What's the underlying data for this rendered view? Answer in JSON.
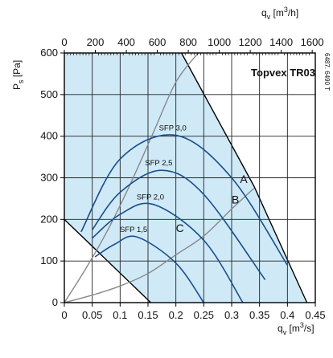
{
  "chart_data": {
    "type": "line",
    "title": "Topvex TR03",
    "side_code": "6487. 6490 T",
    "xlabel": {
      "base": "q",
      "sub": "v",
      "unit": " [m",
      "sup": "3",
      "unit_end": "/s]"
    },
    "x2label": {
      "base": "q",
      "sub": "v",
      "unit": " [m",
      "sup": "3",
      "unit_end": "/h]"
    },
    "ylabel": {
      "base": "P",
      "sub": "s",
      "unit": " [Pa]"
    },
    "xlim": [
      0,
      0.45
    ],
    "x2lim": [
      0,
      1620
    ],
    "ylim": [
      0,
      600
    ],
    "x_ticks": [
      0,
      0.05,
      0.1,
      0.15,
      0.2,
      0.25,
      0.3,
      0.35,
      0.4,
      0.45
    ],
    "x_tick_labels": [
      "0",
      "0.05",
      "0.1",
      "0.15",
      "0.2",
      "0.25",
      "0.3",
      "0.35",
      "0.4",
      "0.45"
    ],
    "x2_ticks": [
      0,
      200,
      400,
      600,
      800,
      1000,
      1200,
      1400,
      1600
    ],
    "x2_tick_labels": [
      "0",
      "200",
      "400",
      "600",
      "800",
      "1000",
      "1200",
      "1400",
      "1600"
    ],
    "y_ticks": [
      0,
      100,
      200,
      300,
      400,
      500,
      600
    ],
    "y_tick_labels": [
      "0",
      "100",
      "200",
      "300",
      "400",
      "500",
      "600"
    ],
    "grid": true,
    "operating_region": [
      [
        0.0,
        200
      ],
      [
        0.0,
        600
      ],
      [
        0.21,
        600
      ],
      [
        0.34,
        280
      ],
      [
        0.435,
        0
      ],
      [
        0.155,
        0
      ],
      [
        0.0,
        200
      ]
    ],
    "fan_curves": [
      {
        "label": "SFP 3,0",
        "x": [
          0.03,
          0.1,
          0.2,
          0.3,
          0.4
        ],
        "y": [
          170,
          345,
          402,
          300,
          90
        ]
      },
      {
        "label": "SFP 2,5",
        "x": [
          0.05,
          0.1,
          0.175,
          0.25,
          0.36
        ],
        "y": [
          175,
          265,
          318,
          260,
          55
        ]
      },
      {
        "label": "SFP 2,0",
        "x": [
          0.05,
          0.1,
          0.16,
          0.25,
          0.32
        ],
        "y": [
          155,
          212,
          236,
          150,
          0
        ]
      },
      {
        "label": "SFP 1,5",
        "x": [
          0.055,
          0.09,
          0.13,
          0.2,
          0.25
        ],
        "y": [
          110,
          140,
          158,
          95,
          0
        ]
      }
    ],
    "system_curves": [
      {
        "x": [
          0,
          0.04,
          0.08,
          0.12,
          0.16,
          0.2,
          0.24
        ],
        "y": [
          0,
          85,
          180,
          290,
          410,
          530,
          600
        ]
      },
      {
        "x": [
          0,
          0.05,
          0.1,
          0.15,
          0.2,
          0.25,
          0.3,
          0.34
        ],
        "y": [
          0,
          18,
          40,
          70,
          115,
          160,
          225,
          275
        ]
      }
    ],
    "point_labels": [
      {
        "label": "A",
        "x": 0.315,
        "y": 287
      },
      {
        "label": "B",
        "x": 0.3,
        "y": 238
      },
      {
        "label": "C",
        "x": 0.2,
        "y": 170
      }
    ]
  }
}
